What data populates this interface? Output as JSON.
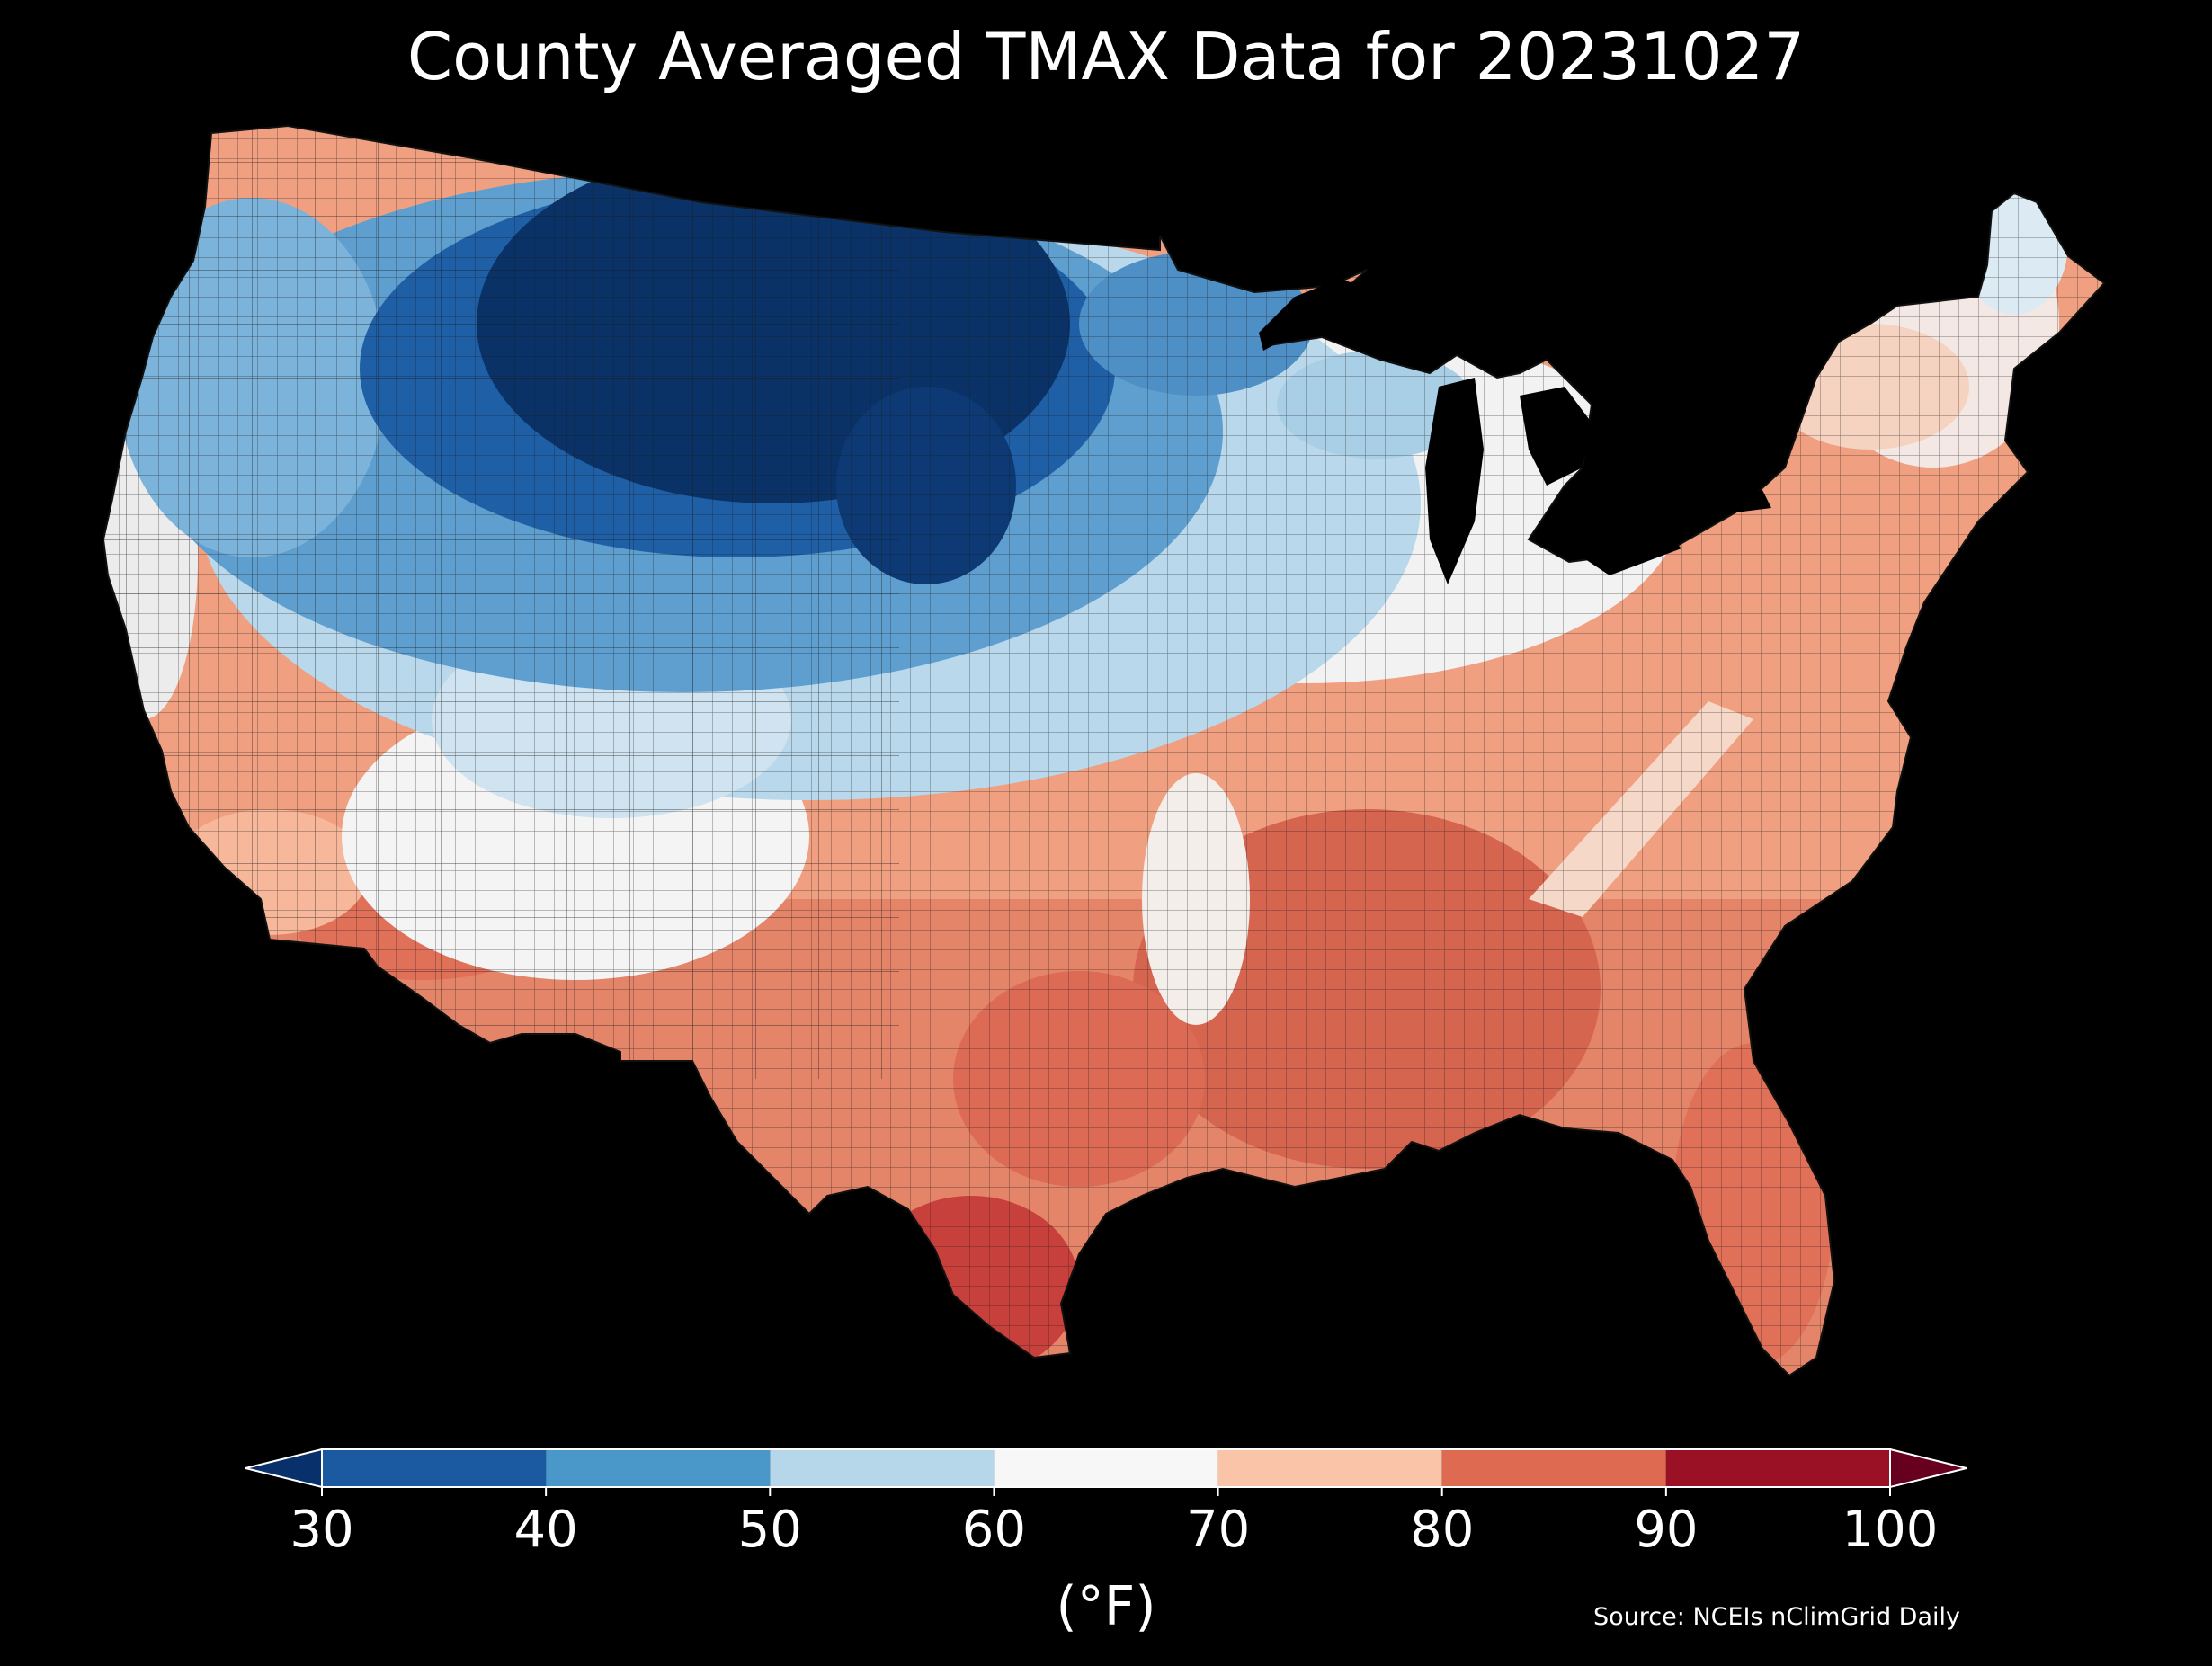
{
  "title": "County Averaged TMAX Data for 20231027",
  "colorbar": {
    "unit_label": "(°F)",
    "ticks": [
      30,
      40,
      50,
      60,
      70,
      80,
      90,
      100
    ],
    "tick_labels": [
      "30",
      "40",
      "50",
      "60",
      "70",
      "80",
      "90",
      "100"
    ],
    "bins": [
      {
        "min": 30,
        "max": 40,
        "color": "#1b5aa0"
      },
      {
        "min": 40,
        "max": 50,
        "color": "#4a97c9"
      },
      {
        "min": 50,
        "max": 60,
        "color": "#b6d7ea"
      },
      {
        "min": 60,
        "max": 70,
        "color": "#f7f7f7"
      },
      {
        "min": 70,
        "max": 80,
        "color": "#f9c4a8"
      },
      {
        "min": 80,
        "max": 90,
        "color": "#de6a52"
      },
      {
        "min": 90,
        "max": 100,
        "color": "#9a1024"
      }
    ],
    "under_color": "#08306b",
    "over_color": "#67001f",
    "extend": "both"
  },
  "source": "Source: NCEIs nClimGrid Daily",
  "map": {
    "region": "CONUS",
    "background": "#000000",
    "county_border_color": "#202020",
    "pattern": "Cold (30-50°F) across northern Rockies and northern Plains; near 60-70°F in central/northeast; 80-90°F+ across southern Plains, Gulf Coast and Southeast; warmest in south Texas."
  }
}
